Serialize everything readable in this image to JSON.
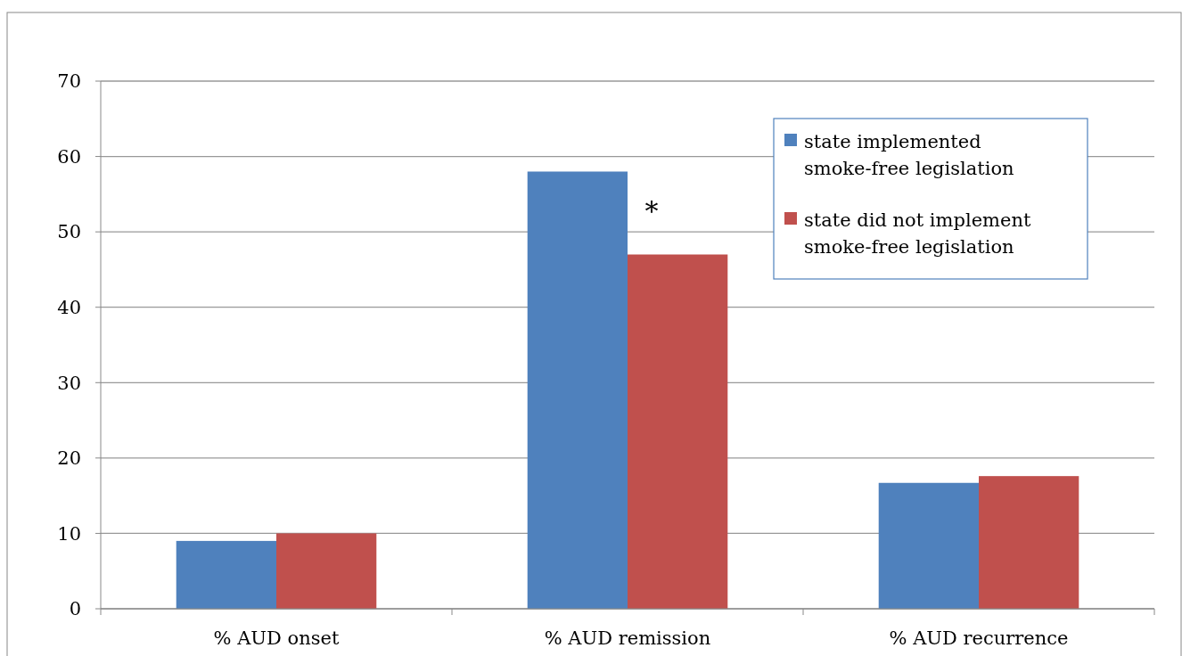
{
  "chart_data": {
    "type": "bar",
    "categories": [
      "% AUD onset",
      "% AUD remission",
      "% AUD recurrence"
    ],
    "series": [
      {
        "name": "state implemented smoke-free legislation",
        "color": "#4f81bd",
        "values": [
          9,
          58,
          16.7
        ]
      },
      {
        "name": "state did not implement smoke-free legislation",
        "color": "#c0504d",
        "values": [
          10,
          47,
          17.6
        ]
      }
    ],
    "ylim": [
      0,
      70
    ],
    "yticks": [
      0,
      10,
      20,
      30,
      40,
      50,
      60,
      70
    ],
    "grid": "y",
    "legend": "top right",
    "annotations": [
      {
        "text": "*",
        "x": "% AUD remission",
        "y": 54
      }
    ]
  }
}
